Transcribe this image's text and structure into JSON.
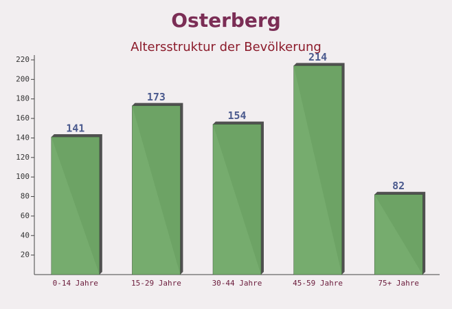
{
  "chart_data": {
    "type": "bar",
    "title": "Osterberg",
    "subtitle": "Altersstruktur der Bevölkerung",
    "categories": [
      "0-14 Jahre",
      "15-29 Jahre",
      "30-44 Jahre",
      "45-59 Jahre",
      "75+ Jahre"
    ],
    "values": [
      141,
      173,
      154,
      214,
      82
    ],
    "color": "#6fa866",
    "ylim": [
      0,
      220
    ],
    "yticks": [
      20,
      40,
      60,
      80,
      100,
      120,
      140,
      160,
      180,
      200,
      220
    ]
  }
}
